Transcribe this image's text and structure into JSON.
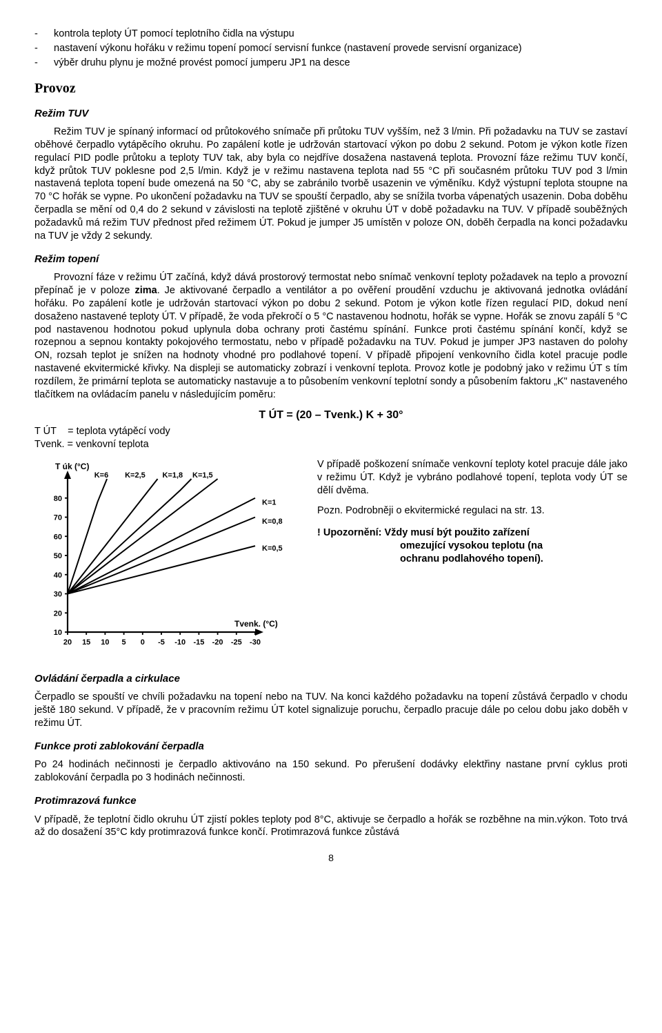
{
  "bullets": {
    "b1": "kontrola teploty ÚT pomocí teplotního čidla na výstupu",
    "b2": "nastavení výkonu hořáku v režimu topení pomocí servisní funkce (nastavení provede servisní organizace)",
    "b3": "výběr druhu plynu je možné provést pomocí jumperu JP1 na desce"
  },
  "provoz_heading": "Provoz",
  "rezim_tuv_heading": "Režim TUV",
  "rezim_tuv_para": "Režim TUV je spínaný informací od průtokového snímače při průtoku TUV vyšším, než 3 l/min. Při požadavku na TUV se zastaví oběhové čerpadlo vytápěcího okruhu. Po zapálení kotle je udržován startovací výkon po dobu 2 sekund. Potom je výkon kotle řízen regulací PID podle průtoku a teploty TUV tak, aby byla co nejdříve dosažena nastavená teplota. Provozní fáze režimu TUV končí, když průtok TUV poklesne pod 2,5 l/min. Když je v režimu nastavena teplota nad 55 °C při současném průtoku TUV pod 3 l/min nastavená teplota topení bude omezená na 50 °C, aby se zabránilo tvorbě usazenin ve výměníku. Když výstupní teplota stoupne na 70 °C hořák se vypne. Po ukončení požadavku na TUV se spouští čerpadlo, aby se snížila tvorba vápenatých usazenin. Doba doběhu čerpadla se mění od 0,4 do 2 sekund v závislosti na teplotě zjištěné v okruhu ÚT v době požadavku na TUV. V případě souběžných požadavků má režim TUV přednost před režimem ÚT. Pokud je jumper J5 umístěn v poloze ON, doběh čerpadla na konci požadavku na TUV je vždy 2 sekundy.",
  "rezim_topeni_heading": "Režim topení",
  "rezim_topeni_para1a": "Provozní fáze v režimu ÚT začíná, když dává prostorový termostat nebo snímač venkovní teploty požadavek na teplo a provozní přepínač je v poloze ",
  "rezim_topeni_zima": "zima",
  "rezim_topeni_para1b": ". Je aktivované čerpadlo a ventilátor a po ověření proudění vzduchu je aktivovaná jednotka ovládání hořáku. Po zapálení kotle je udržován startovací výkon po dobu 2 sekund. Potom je výkon kotle řízen regulací PID, dokud není dosaženo nastavené teploty ÚT. V případě, že voda překročí o 5 °C nastavenou hodnotu, hořák se vypne. Hořák se znovu zapálí 5 °C pod nastavenou hodnotou pokud uplynula doba ochrany proti častému spínání. Funkce proti častému spínání končí, když se rozepnou a sepnou kontakty pokojového termostatu, nebo v případě požadavku na TUV. Pokud je jumper JP3 nastaven do polohy ON, rozsah teplot je snížen na hodnoty vhodné pro podlahové topení. V případě připojení venkovního čidla kotel pracuje podle nastavené ekvitermické křivky. Na displeji se automaticky zobrazí i venkovní teplota. Provoz kotle je podobný jako v režimu ÚT s tím rozdílem, že primární teplota se automaticky nastavuje a to působením venkovní teplotní sondy a působením faktoru „K\" nastaveného tlačítkem na ovládacím panelu v následujícím poměru:",
  "formula_text": "T ÚT = (20 – Tvenk.) K + 30°",
  "def_t_ut_label": "T ÚT",
  "def_t_ut_text": "= teplota vytápěcí vody",
  "def_tvenk_label": "Tvenk.",
  "def_tvenk_text": "= venkovní teplota",
  "col_para1": "V případě poškození snímače venkovní teploty kotel pracuje dále jako v režimu ÚT. Když je vybráno podlahové topení, teplota vody ÚT se dělí dvěma.",
  "col_para2": "Pozn. Podrobněji o ekvitermické regulaci na str. 13.",
  "warn_prefix": "! Upozornění: ",
  "warn_line1": "Vždy musí být použito zařízení",
  "warn_line2": "omezující vysokou teplotu (na",
  "warn_line3": "ochranu podlahového topení).",
  "ovladani_heading": "Ovládání čerpadla a cirkulace",
  "ovladani_para": "Čerpadlo se spouští ve chvíli požadavku na topení nebo na TUV. Na konci každého požadavku na topení zůstává čerpadlo v chodu ještě 180 sekund. V případě, že v pracovním režimu ÚT kotel signalizuje poruchu, čerpadlo pracuje dále po celou dobu jako doběh v režimu ÚT.",
  "funkce_zab_heading": "Funkce proti zablokování čerpadla",
  "funkce_zab_para": "Po 24 hodinách nečinnosti je čerpadlo aktivováno na 150 sekund. Po přerušení dodávky elektřiny nastane první cyklus proti zablokování čerpadla po 3 hodinách nečinnosti.",
  "protimraz_heading": "Protimrazová funkce",
  "protimraz_para": "V případě, že teplotní čidlo okruhu ÚT zjistí pokles teploty pod 8°C, aktivuje se čerpadlo a hořák se rozběhne na min.výkon. Toto trvá až do dosažení 35°C kdy protimrazová funkce končí. Protimrazová funkce zůstává",
  "page_number": "8",
  "chart": {
    "y_axis_label": "T úk (°C)",
    "x_axis_label": "Tvenk. (°C)",
    "y_ticks": [
      10,
      20,
      30,
      40,
      50,
      60,
      70,
      80
    ],
    "x_ticks": [
      20,
      15,
      10,
      5,
      0,
      -5,
      -10,
      -15,
      -20,
      -25,
      -30
    ],
    "k_labels_top": [
      "K=6",
      "K=2,5",
      "K=1,8",
      "K=1,5"
    ],
    "k_labels_right": [
      "K=1",
      "K=0,8",
      "K=0,5"
    ],
    "origin_y": 30,
    "line_color": "#000000",
    "axis_color": "#000000",
    "font_size": 11,
    "label_font_size": 12,
    "curves": [
      {
        "k": 6,
        "pts": [
          [
            20,
            30
          ],
          [
            16,
            54
          ],
          [
            12,
            78
          ],
          [
            9.5,
            90
          ]
        ]
      },
      {
        "k": 2.5,
        "pts": [
          [
            20,
            30
          ],
          [
            10,
            55
          ],
          [
            0,
            80
          ],
          [
            -4,
            90
          ]
        ]
      },
      {
        "k": 1.8,
        "pts": [
          [
            20,
            30
          ],
          [
            5,
            57
          ],
          [
            -10,
            84
          ],
          [
            -13,
            90
          ]
        ]
      },
      {
        "k": 1.5,
        "pts": [
          [
            20,
            30
          ],
          [
            0,
            60
          ],
          [
            -20,
            90
          ]
        ]
      },
      {
        "k": 1.0,
        "pts": [
          [
            20,
            30
          ],
          [
            -10,
            60
          ],
          [
            -30,
            80
          ]
        ]
      },
      {
        "k": 0.8,
        "pts": [
          [
            20,
            30
          ],
          [
            -10,
            54
          ],
          [
            -30,
            70
          ]
        ]
      },
      {
        "k": 0.5,
        "pts": [
          [
            20,
            30
          ],
          [
            -10,
            45
          ],
          [
            -30,
            55
          ]
        ]
      }
    ]
  }
}
